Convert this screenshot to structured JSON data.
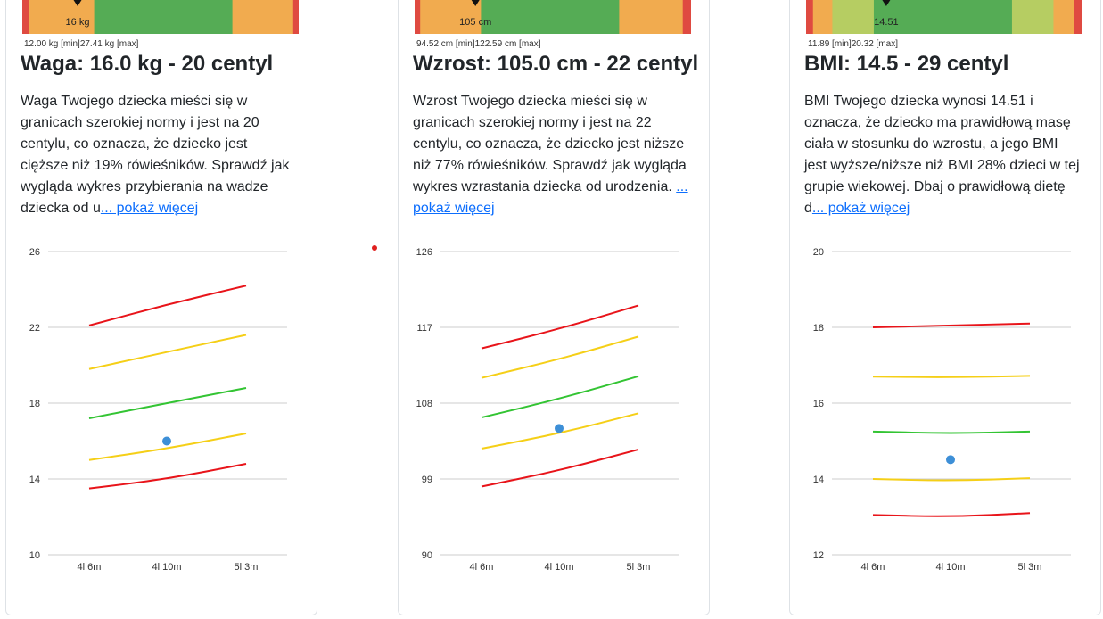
{
  "colors": {
    "red": "#df4a41",
    "orange": "#f1ab4f",
    "green": "#55ac55",
    "light_green": "#b6cd62",
    "grid": "#cccccc",
    "line_red": "#e8141a",
    "line_yellow": "#f5cf17",
    "line_green": "#33c433",
    "point_blue": "#3d8fd7",
    "link": "#0d6efd"
  },
  "cards": [
    {
      "id": "weight",
      "gauge": {
        "segments": [
          [
            "red",
            0.025
          ],
          [
            "orange",
            0.235
          ],
          [
            "green",
            0.5
          ],
          [
            "orange",
            0.22
          ],
          [
            "red",
            0.02
          ]
        ],
        "marker_fraction": 0.2,
        "marker_label": "16 kg"
      },
      "range_label": "12.00 kg [min]27.41 kg [max]",
      "title": "Waga: 16.0 kg - 20 centyl",
      "description": "Waga Twojego dziecka mieści się w granicach szerokiej normy i jest na 20 centylu, co oznacza, że dziecko jest cięższe niż 19% rówieśników. Sprawdź jak wygląda wykres przybierania na wadze dziecka od u",
      "more_label": "... pokaż więcej",
      "chart_data": {
        "type": "line",
        "categories": [
          "4l 6m",
          "4l 10m",
          "5l 3m"
        ],
        "yticks": [
          "10",
          "14",
          "18",
          "22",
          "26"
        ],
        "ylim": [
          10,
          26
        ],
        "series": [
          {
            "color": "line_red",
            "values": [
              22.1,
              23.2,
              24.2
            ]
          },
          {
            "color": "line_yellow",
            "values": [
              19.8,
              20.7,
              21.6
            ]
          },
          {
            "color": "line_green",
            "values": [
              17.2,
              18.0,
              18.8
            ]
          },
          {
            "color": "line_yellow",
            "values": [
              15.0,
              15.6,
              16.4
            ]
          },
          {
            "color": "line_red",
            "values": [
              13.5,
              14.0,
              14.8
            ]
          }
        ],
        "point": {
          "x": "4l 10m",
          "y": 16.0
        }
      }
    },
    {
      "id": "height",
      "gauge": {
        "segments": [
          [
            "red",
            0.02
          ],
          [
            "orange",
            0.22
          ],
          [
            "green",
            0.5
          ],
          [
            "orange",
            0.23
          ],
          [
            "red",
            0.03
          ]
        ],
        "marker_fraction": 0.22,
        "marker_label": "105 cm"
      },
      "range_label": "94.52 cm [min]122.59 cm [max]",
      "title": "Wzrost: 105.0 cm - 22 centyl",
      "description": "Wzrost Twojego dziecka mieści się w granicach szerokiej normy i jest na 22 centylu, co oznacza, że dziecko jest niższe niż 77% rówieśników. Sprawdź jak wygląda wykres wzrastania dziecka od urodzenia. ",
      "more_label": "... pokaż więcej",
      "chart_data": {
        "type": "line",
        "categories": [
          "4l 6m",
          "4l 10m",
          "5l 3m"
        ],
        "yticks": [
          "90",
          "99",
          "108",
          "117",
          "126"
        ],
        "ylim": [
          90,
          126
        ],
        "series": [
          {
            "color": "line_red",
            "values": [
              114.5,
              116.8,
              119.6
            ]
          },
          {
            "color": "line_yellow",
            "values": [
              111.0,
              113.2,
              115.9
            ]
          },
          {
            "color": "line_green",
            "values": [
              106.3,
              108.5,
              111.2
            ]
          },
          {
            "color": "line_yellow",
            "values": [
              102.6,
              104.4,
              106.8
            ]
          },
          {
            "color": "line_red",
            "values": [
              98.1,
              100.0,
              102.5
            ]
          }
        ],
        "point": {
          "x": "4l 10m",
          "y": 105.0
        }
      }
    },
    {
      "id": "bmi",
      "gauge": {
        "segments": [
          [
            "red",
            0.025
          ],
          [
            "orange",
            0.07
          ],
          [
            "light_green",
            0.15
          ],
          [
            "green",
            0.5
          ],
          [
            "light_green",
            0.15
          ],
          [
            "orange",
            0.075
          ],
          [
            "red",
            0.03
          ]
        ],
        "marker_fraction": 0.29,
        "marker_label": "14.51"
      },
      "range_label": "11.89 [min]20.32 [max]",
      "title": "BMI: 14.5 - 29 centyl",
      "description": "BMI Twojego dziecka wynosi 14.51 i oznacza, że dziecko ma prawidłową masę ciała w stosunku do wzrostu, a jego BMI jest wyższe/niższe niż BMI 28% dzieci w tej grupie wiekowej. Dbaj o prawidłową dietę d",
      "more_label": "... pokaż więcej",
      "chart_data": {
        "type": "line",
        "categories": [
          "4l 6m",
          "4l 10m",
          "5l 3m"
        ],
        "yticks": [
          "12",
          "14",
          "16",
          "18",
          "20"
        ],
        "ylim": [
          12,
          20
        ],
        "series": [
          {
            "color": "line_red",
            "values": [
              18.0,
              18.05,
              18.1
            ]
          },
          {
            "color": "line_yellow",
            "values": [
              16.7,
              16.68,
              16.72
            ]
          },
          {
            "color": "line_green",
            "values": [
              15.25,
              15.2,
              15.25
            ]
          },
          {
            "color": "line_yellow",
            "values": [
              14.0,
              13.95,
              14.02
            ]
          },
          {
            "color": "line_red",
            "values": [
              13.05,
              13.0,
              13.1
            ]
          }
        ],
        "point": {
          "x": "4l 10m",
          "y": 14.51
        }
      }
    }
  ]
}
